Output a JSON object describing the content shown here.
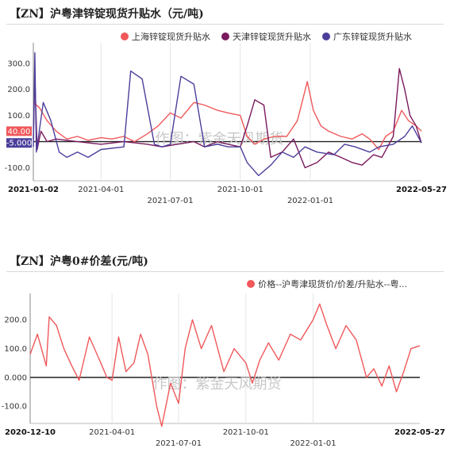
{
  "chart_data": [
    {
      "type": "line",
      "title": "【ZN】沪粤津锌锭现货升贴水（元/吨)",
      "legend_position": "top-right",
      "watermark": "作图：紫金天风期货",
      "ylim": [
        -150,
        360
      ],
      "yticks": [
        "-100.0",
        "0.000",
        "100.0",
        "200.0",
        "300.0"
      ],
      "ytick_values": [
        -100,
        0,
        100,
        200,
        300
      ],
      "xlim": [
        "2021-01-02",
        "2022-05-27"
      ],
      "x_start_label": "2021-01-02",
      "x_end_label": "2022-05-27",
      "x_ticks": [
        "2021-04-01",
        "2021-07-01",
        "2021-10-01",
        "2022-01-01"
      ],
      "end_badges": [
        {
          "text": "40.00",
          "value": 40,
          "color": "#f0585a"
        },
        {
          "text": "-5.000",
          "value": -5,
          "color": "#4b3f9b"
        }
      ],
      "series": [
        {
          "name": "上海锌锭现货升贴水",
          "color": "#f0585a",
          "points": [
            [
              "2021-01-02",
              150
            ],
            [
              "2021-01-10",
              130
            ],
            [
              "2021-01-20",
              80
            ],
            [
              "2021-02-01",
              40
            ],
            [
              "2021-02-15",
              10
            ],
            [
              "2021-03-01",
              20
            ],
            [
              "2021-03-15",
              5
            ],
            [
              "2021-04-01",
              15
            ],
            [
              "2021-04-15",
              10
            ],
            [
              "2021-05-01",
              20
            ],
            [
              "2021-05-15",
              0
            ],
            [
              "2021-06-01",
              30
            ],
            [
              "2021-06-15",
              60
            ],
            [
              "2021-07-01",
              110
            ],
            [
              "2021-07-15",
              90
            ],
            [
              "2021-08-01",
              150
            ],
            [
              "2021-08-15",
              140
            ],
            [
              "2021-09-01",
              120
            ],
            [
              "2021-09-15",
              110
            ],
            [
              "2021-10-01",
              100
            ],
            [
              "2021-10-10",
              20
            ],
            [
              "2021-10-20",
              -10
            ],
            [
              "2021-11-01",
              10
            ],
            [
              "2021-11-15",
              20
            ],
            [
              "2021-12-01",
              20
            ],
            [
              "2021-12-15",
              80
            ],
            [
              "2021-12-22",
              160
            ],
            [
              "2021-12-28",
              230
            ],
            [
              "2022-01-05",
              120
            ],
            [
              "2022-01-15",
              60
            ],
            [
              "2022-01-25",
              40
            ],
            [
              "2022-02-10",
              20
            ],
            [
              "2022-02-25",
              10
            ],
            [
              "2022-03-10",
              30
            ],
            [
              "2022-03-20",
              10
            ],
            [
              "2022-04-01",
              -30
            ],
            [
              "2022-04-10",
              20
            ],
            [
              "2022-04-20",
              40
            ],
            [
              "2022-05-01",
              120
            ],
            [
              "2022-05-10",
              80
            ],
            [
              "2022-05-20",
              60
            ],
            [
              "2022-05-27",
              40
            ]
          ]
        },
        {
          "name": "天津锌锭现货升贴水",
          "color": "#7a1a5e",
          "points": [
            [
              "2021-01-02",
              10
            ],
            [
              "2021-01-04",
              250
            ],
            [
              "2021-01-07",
              -30
            ],
            [
              "2021-01-12",
              40
            ],
            [
              "2021-01-20",
              0
            ],
            [
              "2021-02-01",
              10
            ],
            [
              "2021-03-01",
              0
            ],
            [
              "2021-04-01",
              -10
            ],
            [
              "2021-05-01",
              0
            ],
            [
              "2021-06-01",
              -10
            ],
            [
              "2021-06-20",
              -20
            ],
            [
              "2021-07-10",
              -10
            ],
            [
              "2021-08-01",
              0
            ],
            [
              "2021-08-15",
              -20
            ],
            [
              "2021-09-01",
              0
            ],
            [
              "2021-09-15",
              -10
            ],
            [
              "2021-10-01",
              -20
            ],
            [
              "2021-10-10",
              60
            ],
            [
              "2021-10-20",
              160
            ],
            [
              "2021-11-01",
              140
            ],
            [
              "2021-11-10",
              -60
            ],
            [
              "2021-11-25",
              -40
            ],
            [
              "2021-12-10",
              10
            ],
            [
              "2021-12-25",
              -100
            ],
            [
              "2022-01-10",
              -80
            ],
            [
              "2022-01-25",
              -40
            ],
            [
              "2022-02-10",
              -60
            ],
            [
              "2022-02-25",
              -80
            ],
            [
              "2022-03-10",
              -90
            ],
            [
              "2022-03-25",
              -50
            ],
            [
              "2022-04-05",
              -60
            ],
            [
              "2022-04-20",
              20
            ],
            [
              "2022-04-28",
              280
            ],
            [
              "2022-05-05",
              200
            ],
            [
              "2022-05-12",
              100
            ],
            [
              "2022-05-20",
              60
            ],
            [
              "2022-05-27",
              -5
            ]
          ]
        },
        {
          "name": "广东锌锭现货升贴水",
          "color": "#4b3f9b",
          "points": [
            [
              "2021-01-02",
              -20
            ],
            [
              "2021-01-04",
              340
            ],
            [
              "2021-01-06",
              -40
            ],
            [
              "2021-01-15",
              150
            ],
            [
              "2021-01-25",
              80
            ],
            [
              "2021-02-05",
              -40
            ],
            [
              "2021-02-15",
              -60
            ],
            [
              "2021-03-01",
              -40
            ],
            [
              "2021-03-15",
              -60
            ],
            [
              "2021-04-01",
              -30
            ],
            [
              "2021-05-01",
              -20
            ],
            [
              "2021-05-10",
              270
            ],
            [
              "2021-05-25",
              240
            ],
            [
              "2021-06-10",
              -10
            ],
            [
              "2021-06-20",
              -20
            ],
            [
              "2021-07-01",
              -10
            ],
            [
              "2021-07-15",
              250
            ],
            [
              "2021-08-01",
              220
            ],
            [
              "2021-08-15",
              -20
            ],
            [
              "2021-09-01",
              -10
            ],
            [
              "2021-09-15",
              -20
            ],
            [
              "2021-10-01",
              -20
            ],
            [
              "2021-10-10",
              -80
            ],
            [
              "2021-10-25",
              -130
            ],
            [
              "2021-11-10",
              -90
            ],
            [
              "2021-11-25",
              -40
            ],
            [
              "2021-12-10",
              -60
            ],
            [
              "2021-12-25",
              -20
            ],
            [
              "2022-01-10",
              -40
            ],
            [
              "2022-02-01",
              -50
            ],
            [
              "2022-02-15",
              -10
            ],
            [
              "2022-03-01",
              -20
            ],
            [
              "2022-03-20",
              -40
            ],
            [
              "2022-04-01",
              -20
            ],
            [
              "2022-04-20",
              -10
            ],
            [
              "2022-05-05",
              20
            ],
            [
              "2022-05-15",
              60
            ],
            [
              "2022-05-27",
              -5
            ]
          ]
        }
      ]
    },
    {
      "type": "line",
      "title": "【ZN】沪粤0#价差(元/吨)",
      "legend_position": "top-right",
      "watermark": "作图：紫金天风期货",
      "ylim": [
        -160,
        275
      ],
      "yticks": [
        "-100.0",
        "0.000",
        "100.0",
        "200.0"
      ],
      "ytick_values": [
        -100,
        0,
        100,
        200
      ],
      "xlim": [
        "2020-12-10",
        "2022-05-27"
      ],
      "x_start_label": "2020-12-10",
      "x_end_label": "2022-05-27",
      "x_ticks": [
        "2021-04-01",
        "2021-07-01",
        "2021-10-01",
        "2022-01-01"
      ],
      "series": [
        {
          "name": "价格--沪粤津现货价/价差/升贴水--粤...",
          "color": "#f0585a",
          "points": [
            [
              "2020-12-10",
              80
            ],
            [
              "2020-12-20",
              150
            ],
            [
              "2021-01-01",
              40
            ],
            [
              "2021-01-05",
              210
            ],
            [
              "2021-01-15",
              180
            ],
            [
              "2021-01-25",
              100
            ],
            [
              "2021-02-05",
              40
            ],
            [
              "2021-02-15",
              -10
            ],
            [
              "2021-03-01",
              140
            ],
            [
              "2021-03-15",
              60
            ],
            [
              "2021-03-25",
              0
            ],
            [
              "2021-04-01",
              -10
            ],
            [
              "2021-04-10",
              140
            ],
            [
              "2021-04-20",
              20
            ],
            [
              "2021-05-01",
              50
            ],
            [
              "2021-05-10",
              150
            ],
            [
              "2021-05-20",
              80
            ],
            [
              "2021-06-01",
              -100
            ],
            [
              "2021-06-08",
              -170
            ],
            [
              "2021-06-20",
              -20
            ],
            [
              "2021-07-01",
              -90
            ],
            [
              "2021-07-10",
              100
            ],
            [
              "2021-07-20",
              200
            ],
            [
              "2021-08-01",
              100
            ],
            [
              "2021-08-15",
              180
            ],
            [
              "2021-09-01",
              20
            ],
            [
              "2021-09-15",
              100
            ],
            [
              "2021-10-01",
              50
            ],
            [
              "2021-10-10",
              -20
            ],
            [
              "2021-10-20",
              60
            ],
            [
              "2021-11-01",
              120
            ],
            [
              "2021-11-15",
              60
            ],
            [
              "2021-12-01",
              150
            ],
            [
              "2021-12-15",
              130
            ],
            [
              "2022-01-01",
              200
            ],
            [
              "2022-01-10",
              255
            ],
            [
              "2022-01-20",
              180
            ],
            [
              "2022-02-01",
              100
            ],
            [
              "2022-02-15",
              180
            ],
            [
              "2022-03-01",
              130
            ],
            [
              "2022-03-15",
              0
            ],
            [
              "2022-03-25",
              30
            ],
            [
              "2022-04-05",
              -30
            ],
            [
              "2022-04-15",
              40
            ],
            [
              "2022-04-25",
              -50
            ],
            [
              "2022-05-05",
              20
            ],
            [
              "2022-05-15",
              100
            ],
            [
              "2022-05-27",
              110
            ]
          ]
        }
      ]
    }
  ]
}
